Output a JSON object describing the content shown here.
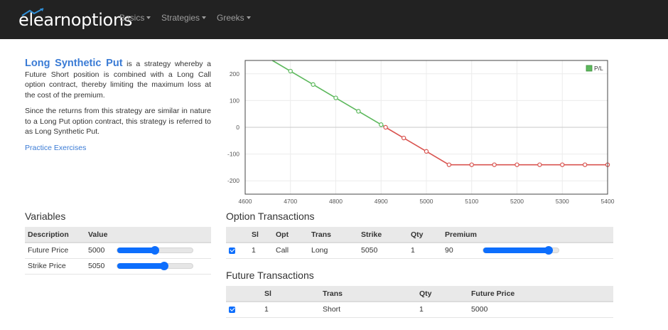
{
  "nav": {
    "logo": "elearnoptions",
    "items": [
      {
        "label": "Basics"
      },
      {
        "label": "Strategies"
      },
      {
        "label": "Greeks"
      }
    ]
  },
  "intro": {
    "title": "Long Synthetic Put",
    "p1_rest": " is a strategy whereby a Future Short position is combined with a Long Call option contract, thereby limiting the maximum loss at the cost of the premium.",
    "p2": "Since the returns from this strategy are similar in nature to a Long Put option contract, this strategy is referred to as Long Synthetic Put.",
    "link": "Practice Exercises"
  },
  "chart_data": {
    "type": "line",
    "legend": {
      "label": "P/L",
      "placement": "top-right"
    },
    "xlim": [
      4600,
      5400
    ],
    "ylim": [
      -250,
      250
    ],
    "x_ticks": [
      4600,
      4700,
      4800,
      4900,
      5000,
      5100,
      5200,
      5300,
      5400
    ],
    "y_ticks": [
      200,
      100,
      0,
      -100,
      -200
    ],
    "grid": true,
    "series": [
      {
        "name": "P/L",
        "color_positive": "#5cb85c",
        "color_negative": "#d9534f",
        "points": [
          [
            4660,
            250
          ],
          [
            4700,
            210
          ],
          [
            4750,
            160
          ],
          [
            4800,
            110
          ],
          [
            4850,
            60
          ],
          [
            4900,
            10
          ],
          [
            4910,
            0
          ],
          [
            4950,
            -40
          ],
          [
            5000,
            -90
          ],
          [
            5050,
            -140
          ],
          [
            5100,
            -140
          ],
          [
            5150,
            -140
          ],
          [
            5200,
            -140
          ],
          [
            5250,
            -140
          ],
          [
            5300,
            -140
          ],
          [
            5350,
            -140
          ],
          [
            5400,
            -140
          ]
        ]
      }
    ]
  },
  "variables": {
    "title": "Variables",
    "headers": [
      "Description",
      "Value"
    ],
    "rows": [
      {
        "description": "Future Price",
        "value": "5000",
        "slider": 0.5
      },
      {
        "description": "Strike Price",
        "value": "5050",
        "slider": 0.62
      }
    ]
  },
  "option_transactions": {
    "title": "Option Transactions",
    "headers": [
      "Sl",
      "Opt",
      "Trans",
      "Strike",
      "Qty",
      "Premium"
    ],
    "rows": [
      {
        "sl": "1",
        "opt": "Call",
        "trans": "Long",
        "strike": "5050",
        "qty": "1",
        "premium": "90",
        "slider": 0.87
      }
    ]
  },
  "future_transactions": {
    "title": "Future Transactions",
    "headers": [
      "Sl",
      "Trans",
      "Qty",
      "Future Price"
    ],
    "rows": [
      {
        "sl": "1",
        "trans": "Short",
        "qty": "1",
        "future_price": "5000"
      }
    ]
  },
  "colors": {
    "accent": "#0d6efd",
    "title_blue": "#3a7bd5",
    "profit": "#5cb85c",
    "loss": "#d9534f",
    "navbar": "#222222"
  }
}
